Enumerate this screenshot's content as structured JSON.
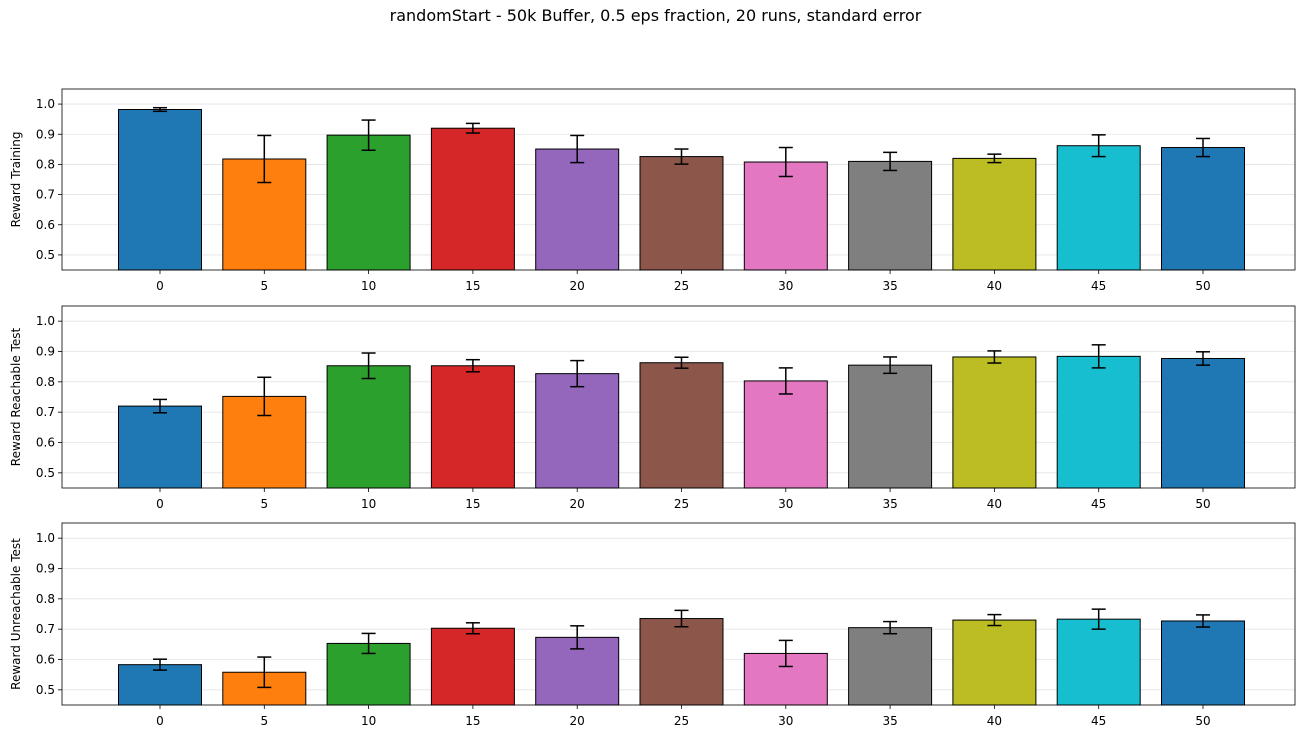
{
  "title": "randomStart - 50k Buffer, 0.5 eps fraction, 20 runs, standard error",
  "chart_data": [
    {
      "type": "bar",
      "ylabel": "Reward Training",
      "categories": [
        "0",
        "5",
        "10",
        "15",
        "20",
        "25",
        "30",
        "35",
        "40",
        "45",
        "50"
      ],
      "values": [
        0.982,
        0.818,
        0.897,
        0.92,
        0.851,
        0.826,
        0.808,
        0.81,
        0.82,
        0.862,
        0.856
      ],
      "errors": [
        0.006,
        0.078,
        0.05,
        0.016,
        0.045,
        0.025,
        0.048,
        0.03,
        0.014,
        0.036,
        0.03
      ],
      "ylim": [
        0.45,
        1.05
      ],
      "yticks": [
        "0.5",
        "0.6",
        "0.7",
        "0.8",
        "0.9",
        "1.0"
      ],
      "grid": "y"
    },
    {
      "type": "bar",
      "ylabel": "Reward Reachable Test",
      "categories": [
        "0",
        "5",
        "10",
        "15",
        "20",
        "25",
        "30",
        "35",
        "40",
        "45",
        "50"
      ],
      "values": [
        0.72,
        0.752,
        0.853,
        0.853,
        0.827,
        0.863,
        0.803,
        0.855,
        0.882,
        0.884,
        0.877
      ],
      "errors": [
        0.022,
        0.063,
        0.042,
        0.02,
        0.043,
        0.018,
        0.043,
        0.027,
        0.02,
        0.038,
        0.022
      ],
      "ylim": [
        0.45,
        1.05
      ],
      "yticks": [
        "0.5",
        "0.6",
        "0.7",
        "0.8",
        "0.9",
        "1.0"
      ],
      "grid": "y"
    },
    {
      "type": "bar",
      "ylabel": "Reward Unreachable Test",
      "categories": [
        "0",
        "5",
        "10",
        "15",
        "20",
        "25",
        "30",
        "35",
        "40",
        "45",
        "50"
      ],
      "values": [
        0.583,
        0.558,
        0.653,
        0.703,
        0.673,
        0.735,
        0.62,
        0.705,
        0.73,
        0.733,
        0.727
      ],
      "errors": [
        0.018,
        0.05,
        0.033,
        0.018,
        0.038,
        0.027,
        0.043,
        0.02,
        0.018,
        0.033,
        0.02
      ],
      "ylim": [
        0.45,
        1.05
      ],
      "yticks": [
        "0.5",
        "0.6",
        "0.7",
        "0.8",
        "0.9",
        "1.0"
      ],
      "grid": "y"
    }
  ],
  "colors": [
    "#1f77b4",
    "#ff7f0e",
    "#2ca02c",
    "#d62728",
    "#9467bd",
    "#8c564b",
    "#e377c2",
    "#7f7f7f",
    "#bcbd22",
    "#17becf",
    "#1f77b4"
  ]
}
